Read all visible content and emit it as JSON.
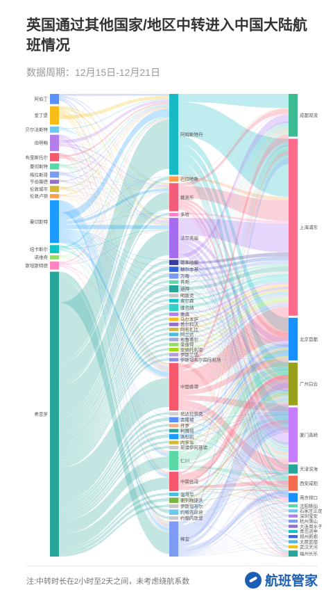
{
  "title": "英国通过其他国家/地区中转进入中国大陆航班情况",
  "subtitle": "数据周期：12月15日-12月21日",
  "footnote": "注:中转时长在2小时至2天之间，未考虑绕航系数",
  "brand": "航班管家",
  "chart_data": {
    "type": "sankey",
    "origins": [
      {
        "name": "阿伯丁",
        "color": "#5b8ff9",
        "value": 5
      },
      {
        "name": "爱丁堡",
        "color": "#f6bd16",
        "value": 9
      },
      {
        "name": "贝尔法斯特",
        "color": "#6dc8ec",
        "value": 3
      },
      {
        "name": "伯明翰",
        "color": "#b37feb",
        "value": 8
      },
      {
        "name": "布里斯托尔",
        "color": "#f5576c",
        "value": 4
      },
      {
        "name": "曼彻斯特",
        "color": "#5ad8a6",
        "value": 3
      },
      {
        "name": "格拉斯哥",
        "color": "#7d9bf2",
        "value": 3
      },
      {
        "name": "亨伯赛德",
        "color": "#9270ca",
        "value": 2
      },
      {
        "name": "伦敦城市",
        "color": "#d3b83b",
        "value": 3
      },
      {
        "name": "伦敦卢顿",
        "color": "#ff9d4d",
        "value": 2
      },
      {
        "name": "曼切斯特",
        "color": "#1e9bff",
        "value": 21
      },
      {
        "name": "纽卡斯尔",
        "color": "#13c2c2",
        "value": 4
      },
      {
        "name": "诺维奇",
        "color": "#95de64",
        "value": 2
      },
      {
        "name": "斯坦斯特德",
        "color": "#ff85c0",
        "value": 4
      },
      {
        "name": "希思罗",
        "color": "#26a69a",
        "value": 140
      }
    ],
    "hubs": [
      {
        "name": "阿姆斯特丹",
        "color": "#17b9c4",
        "value": 46
      },
      {
        "name": "巴拉哈斯",
        "color": "#ff9d4d",
        "value": 3
      },
      {
        "name": "戴高乐",
        "color": "#f25e7a",
        "value": 16
      },
      {
        "name": "多哈",
        "color": "#ff85c0",
        "value": 2
      },
      {
        "name": "法兰克福",
        "color": "#a66cf0",
        "value": 23
      },
      {
        "name": "哥本哈根",
        "color": "#3a3a9e",
        "value": 3
      },
      {
        "name": "赫尔辛基",
        "color": "#3867d6",
        "value": 3
      },
      {
        "name": "万喀",
        "color": "#7d9bf2",
        "value": 3
      },
      {
        "name": "肯邦",
        "color": "#5ad8a6",
        "value": 2
      },
      {
        "name": "迪拜",
        "color": "#26a69a",
        "value": 4
      },
      {
        "name": "明斯克",
        "color": "#c7c7c7",
        "value": 2
      },
      {
        "name": "皮尔森",
        "color": "#13c2c2",
        "value": 2
      },
      {
        "name": "维也纳",
        "color": "#36cfc9",
        "value": 4
      },
      {
        "name": "雅典",
        "color": "#b37feb",
        "value": 2
      },
      {
        "name": "马尔本萨",
        "color": "#f6bd16",
        "value": 2
      },
      {
        "name": "普尔科沃",
        "color": "#9270ca",
        "value": 2
      },
      {
        "name": "阿布扎比",
        "color": "#d3b83b",
        "value": 2
      },
      {
        "name": "阿兰达",
        "color": "#4fb9d9",
        "value": 2
      },
      {
        "name": "布鲁塞尔",
        "color": "#9fa8da",
        "value": 2
      },
      {
        "name": "圣彼得",
        "color": "#95de64",
        "value": 2
      },
      {
        "name": "安纳托利亚",
        "color": "#a0d911",
        "value": 2
      },
      {
        "name": "伊斯兰堡",
        "color": "#b39ddb",
        "value": 2
      },
      {
        "name": "伊斯坦布尔国际机场",
        "color": "#8c8cde",
        "value": 2
      },
      {
        "name": "中国香港",
        "color": "#f5576c",
        "value": 27
      },
      {
        "name": "班达拉奈克",
        "color": "#cfcfcf",
        "value": 2
      },
      {
        "name": "吉隆坡",
        "color": "#5b8ff9",
        "value": 3
      },
      {
        "name": "开罗",
        "color": "#f4b183",
        "value": 2
      },
      {
        "name": "利雅得",
        "color": "#26a69a",
        "value": 2
      },
      {
        "name": "洛杉矶",
        "color": "#1e9bff",
        "value": 3
      },
      {
        "name": "内罗毕",
        "color": "#d3b83b",
        "value": 2
      },
      {
        "name": "尼诺伊阿基诺",
        "color": "#c7c7c7",
        "value": 2
      },
      {
        "name": "仁川",
        "color": "#5ad8a6",
        "value": 11
      },
      {
        "name": "中国台湾",
        "color": "#f5576c",
        "value": 11
      },
      {
        "name": "温哥华",
        "color": "#4fb9d9",
        "value": 2
      },
      {
        "name": "谢列梅捷沃",
        "color": "#7cb342",
        "value": 3
      },
      {
        "name": "伊斯坦布尔",
        "color": "#c7c7c7",
        "value": 2
      },
      {
        "name": "约翰肯尼迪",
        "color": "#6dc8ec",
        "value": 3
      },
      {
        "name": "约翰内斯堡",
        "color": "#c7c7c7",
        "value": 2
      },
      {
        "name": "樟宜",
        "color": "#7d9bf2",
        "value": 20
      }
    ],
    "destinations": [
      {
        "name": "成都双流",
        "color": "#3cba92",
        "value": 14
      },
      {
        "name": "上海浦东",
        "color": "#ff6b8a",
        "value": 58
      },
      {
        "name": "北京首都",
        "color": "#1890ff",
        "value": 14
      },
      {
        "name": "广州白云",
        "color": "#97a21a",
        "value": 14
      },
      {
        "name": "厦门高崎",
        "color": "#c77dff",
        "value": 18
      },
      {
        "name": "天津滨海",
        "color": "#26a69a",
        "value": 3
      },
      {
        "name": "西安咸阳",
        "color": "#f46a4e",
        "value": 5
      },
      {
        "name": "南京禄口",
        "color": "#1890ff",
        "value": 3
      },
      {
        "name": "沈阳桃仙",
        "color": "#5ad8a6",
        "value": 1
      },
      {
        "name": "石家庄正定",
        "color": "#6dc8ec",
        "value": 1
      },
      {
        "name": "深圳宝安",
        "color": "#b37feb",
        "value": 1
      },
      {
        "name": "杭州萧山",
        "color": "#7d9bf2",
        "value": 1
      },
      {
        "name": "大连周水子",
        "color": "#9270ca",
        "value": 1
      },
      {
        "name": "青岛流亭",
        "color": "#13c2c2",
        "value": 1
      },
      {
        "name": "郑州新郑",
        "color": "#3867d6",
        "value": 1
      },
      {
        "name": "太原武宿",
        "color": "#4fb9d9",
        "value": 1
      },
      {
        "name": "武汉天河",
        "color": "#f6bd16",
        "value": 1
      },
      {
        "name": "福州长乐",
        "color": "#26a69a",
        "value": 2
      }
    ]
  }
}
